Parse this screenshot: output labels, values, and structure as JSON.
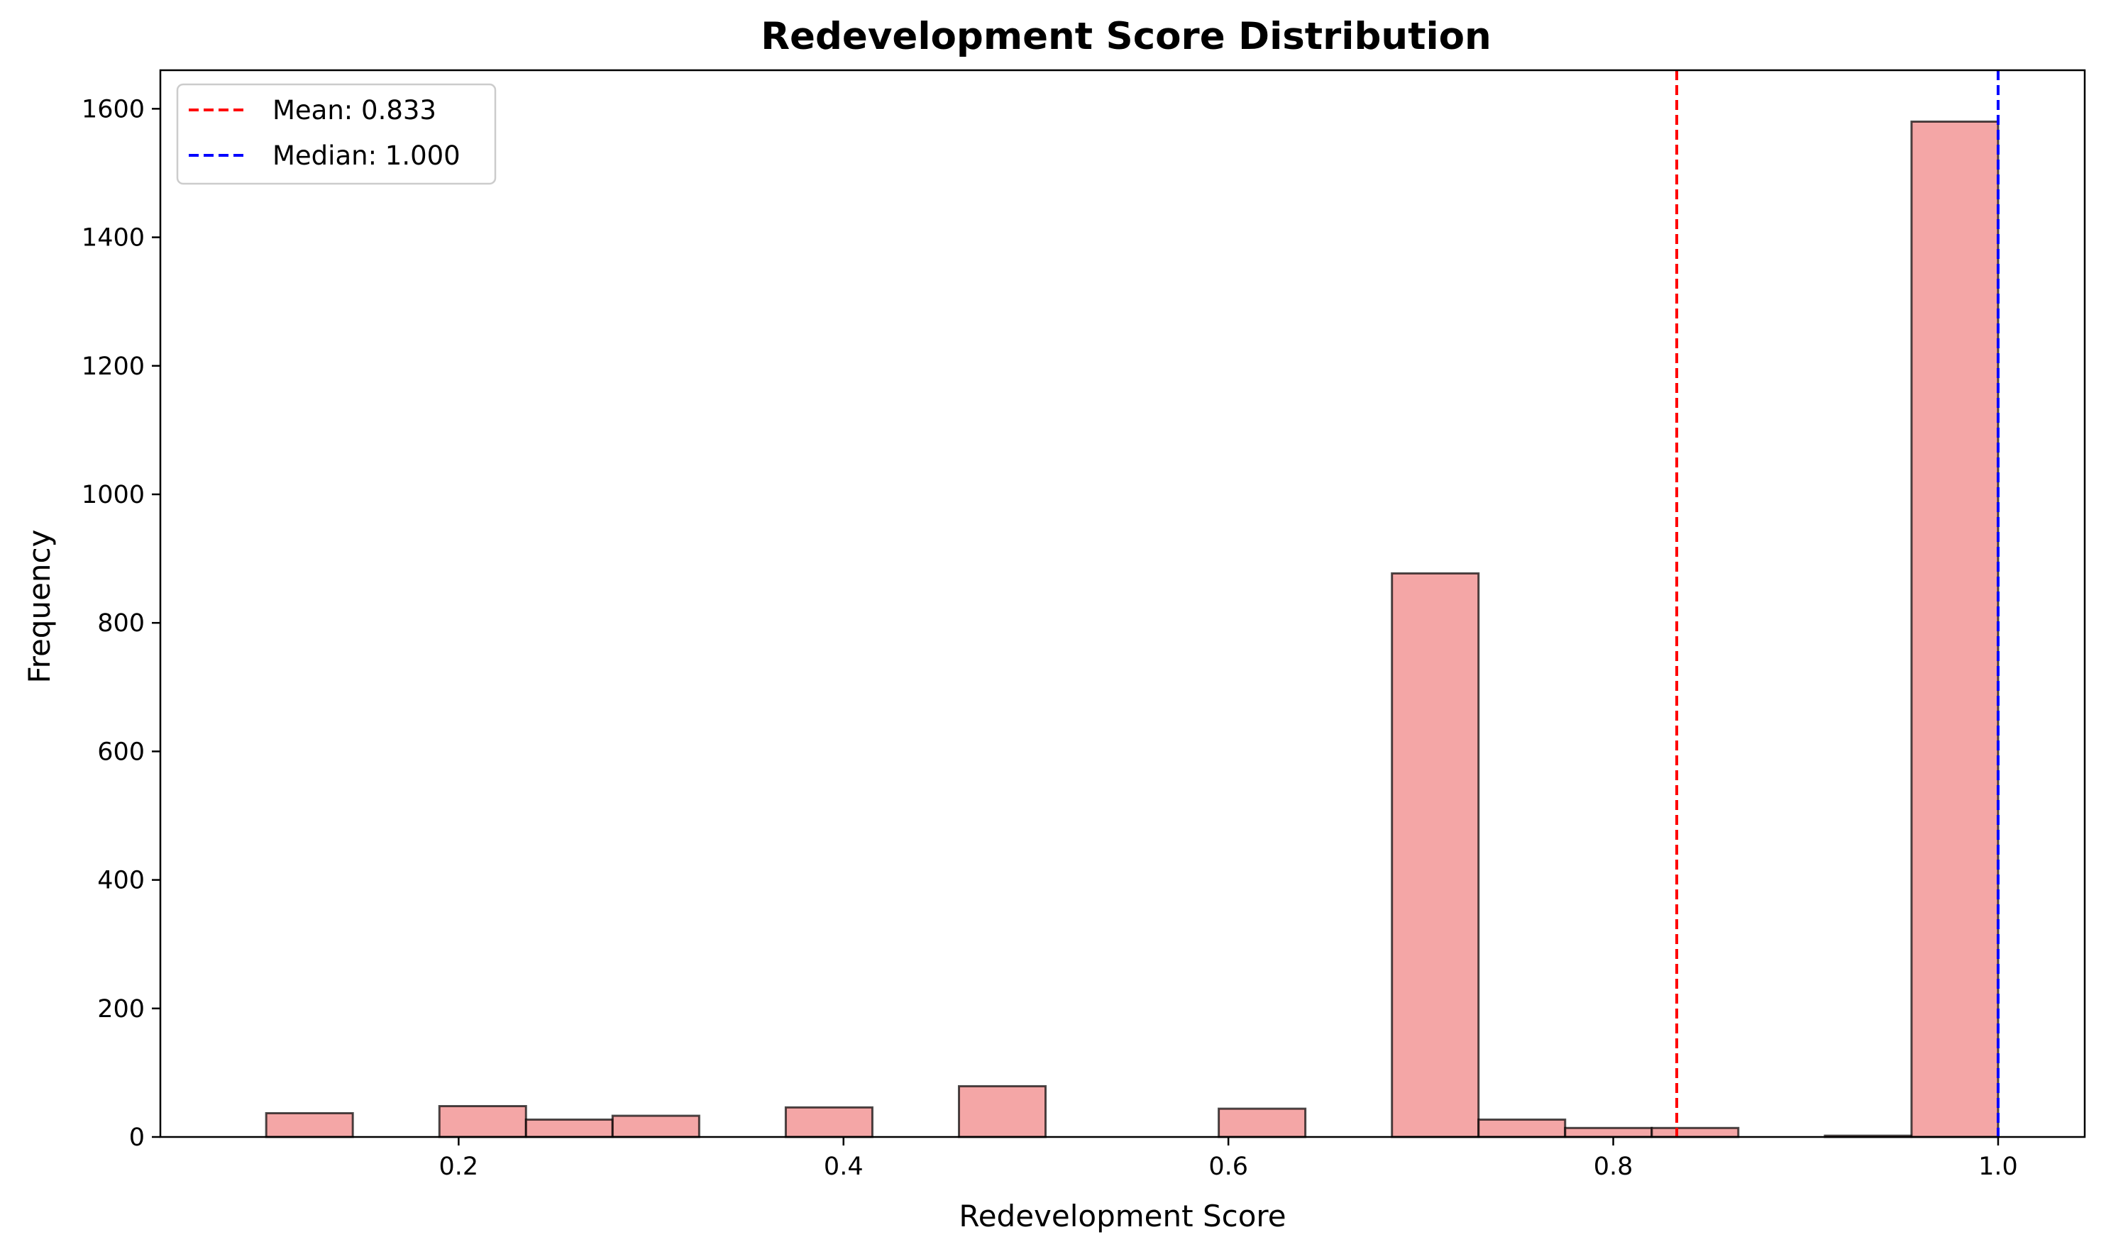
{
  "chart_data": {
    "type": "bar",
    "title": "Redevelopment Score Distribution",
    "xlabel": "Redevelopment Score",
    "ylabel": "Frequency",
    "xlim": [
      0.045,
      1.045
    ],
    "ylim": [
      0,
      1660
    ],
    "xticks": [
      {
        "value": 0.2,
        "label": "0.2"
      },
      {
        "value": 0.4,
        "label": "0.4"
      },
      {
        "value": 0.6,
        "label": "0.6"
      },
      {
        "value": 0.8,
        "label": "0.8"
      },
      {
        "value": 1.0,
        "label": "1.0"
      }
    ],
    "yticks": [
      {
        "value": 0,
        "label": "0"
      },
      {
        "value": 200,
        "label": "200"
      },
      {
        "value": 400,
        "label": "400"
      },
      {
        "value": 600,
        "label": "600"
      },
      {
        "value": 800,
        "label": "800"
      },
      {
        "value": 1000,
        "label": "1000"
      },
      {
        "value": 1200,
        "label": "1200"
      },
      {
        "value": 1400,
        "label": "1400"
      },
      {
        "value": 1600,
        "label": "1600"
      }
    ],
    "bins": {
      "start": 0.1,
      "width": 0.045,
      "counts": [
        37,
        0,
        48,
        27,
        33,
        0,
        46,
        0,
        79,
        0,
        0,
        44,
        0,
        877,
        27,
        14,
        14,
        0,
        2,
        1580
      ]
    },
    "bar_color": "#f08080",
    "bar_alpha": 0.7,
    "edge_color": "#000000",
    "grid": false,
    "legend": {
      "position": "top-left",
      "entries": [
        {
          "label": "Mean: 0.833",
          "color": "#ff0000",
          "style": "dashed",
          "x": 0.833
        },
        {
          "label": "Median: 1.000",
          "color": "#0000ff",
          "style": "dashed",
          "x": 1.0
        }
      ]
    }
  }
}
